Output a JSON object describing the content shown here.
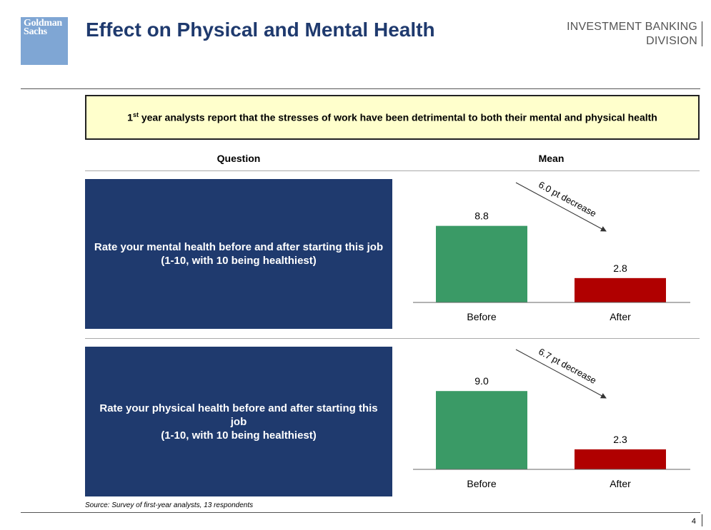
{
  "header": {
    "logo_text": "Goldman\nSachs",
    "title": "Effect on Physical and Mental Health",
    "division_line1": "INVESTMENT BANKING",
    "division_line2": "DIVISION"
  },
  "callout": {
    "superscript": "st",
    "text_prefix": "1",
    "text_rest": " year analysts report that the stresses of work have been detrimental to both their mental and physical health"
  },
  "columns": {
    "question": "Question",
    "mean": "Mean"
  },
  "questions": [
    "Rate your mental health before and after starting this job\n(1-10, with 10 being healthiest)",
    "Rate your physical health before and after starting this job\n(1-10, with 10 being healthiest)"
  ],
  "colors": {
    "before": "#3a9a66",
    "after": "#b00000",
    "navy": "#1f3a6e"
  },
  "chart_data": [
    {
      "type": "bar",
      "categories": [
        "Before",
        "After"
      ],
      "values": [
        8.8,
        2.8
      ],
      "value_labels": [
        "8.8",
        "2.8"
      ],
      "annotation": "6.0 pt decrease",
      "ylim": [
        0,
        10
      ]
    },
    {
      "type": "bar",
      "categories": [
        "Before",
        "After"
      ],
      "values": [
        9.0,
        2.3
      ],
      "value_labels": [
        "9.0",
        "2.3"
      ],
      "annotation": "6.7 pt decrease",
      "ylim": [
        0,
        10
      ]
    }
  ],
  "footer": {
    "source": "Source: Survey of first-year analysts, 13 respondents",
    "page": "4"
  }
}
